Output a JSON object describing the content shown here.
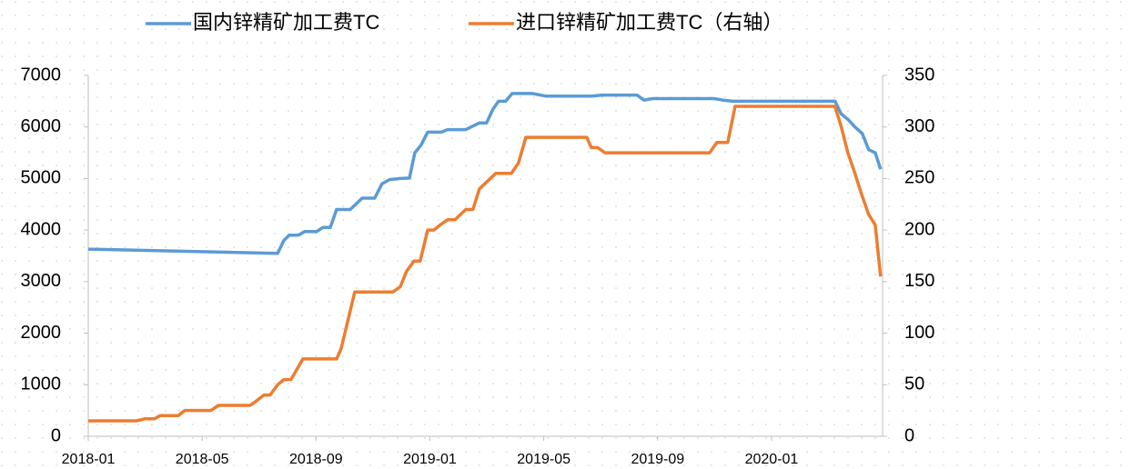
{
  "chart_data": {
    "type": "line",
    "xlim": [
      0,
      27.9
    ],
    "xticks": [
      {
        "value": 0,
        "label": "2018-01"
      },
      {
        "value": 4,
        "label": "2018-05"
      },
      {
        "value": 8,
        "label": "2018-09"
      },
      {
        "value": 12,
        "label": "2019-01"
      },
      {
        "value": 16,
        "label": "2019-05"
      },
      {
        "value": 20,
        "label": "2019-09"
      },
      {
        "value": 24,
        "label": "2020-01"
      }
    ],
    "ylim": [
      0,
      7000
    ],
    "yticks": [
      0,
      1000,
      2000,
      3000,
      4000,
      5000,
      6000,
      7000
    ],
    "y2lim": [
      0,
      350
    ],
    "y2ticks": [
      0,
      50,
      100,
      150,
      200,
      250,
      300,
      350
    ],
    "series": [
      {
        "name": "国内锌精矿加工费TC",
        "color": "#5b9bd5",
        "x": [
          0,
          6.65,
          6.87,
          7.06,
          7.38,
          7.6,
          8.02,
          8.24,
          8.5,
          8.72,
          9.2,
          9.62,
          10.06,
          10.32,
          10.58,
          10.96,
          11.28,
          11.47,
          11.69,
          11.92,
          12.4,
          12.62,
          13.26,
          13.74,
          13.99,
          14.22,
          14.41,
          14.66,
          14.89,
          15.59,
          16.07,
          17.67,
          18.05,
          19.27,
          19.52,
          19.81,
          21.98,
          22.3,
          22.65,
          26.23,
          26.45,
          26.68,
          26.93,
          27.19,
          27.41,
          27.64,
          27.83
        ],
        "values": [
          3630,
          3550,
          3800,
          3900,
          3900,
          3970,
          3970,
          4050,
          4050,
          4400,
          4400,
          4620,
          4620,
          4900,
          4980,
          5000,
          5010,
          5500,
          5650,
          5900,
          5900,
          5950,
          5950,
          6080,
          6080,
          6350,
          6500,
          6500,
          6650,
          6650,
          6600,
          6600,
          6620,
          6620,
          6520,
          6550,
          6550,
          6520,
          6500,
          6500,
          6250,
          6150,
          6000,
          5870,
          5560,
          5500,
          5180
        ]
      },
      {
        "name": "进口锌精矿加工费TC（右轴）",
        "color": "#ed7d31",
        "axis": "y2",
        "x": [
          0,
          1.69,
          2.01,
          2.33,
          2.52,
          3.16,
          3.39,
          4.31,
          4.57,
          5.69,
          5.94,
          6.17,
          6.39,
          6.65,
          6.87,
          7.12,
          7.54,
          8.72,
          8.88,
          9.36,
          10.7,
          10.96,
          11.18,
          11.44,
          11.66,
          11.92,
          12.14,
          12.36,
          12.62,
          12.88,
          13.26,
          13.51,
          13.74,
          14.31,
          14.86,
          15.11,
          15.37,
          17.51,
          17.67,
          17.89,
          18.15,
          21.82,
          22.08,
          22.46,
          22.72,
          26.23,
          26.45,
          26.68,
          26.93,
          27.16,
          27.41,
          27.64,
          27.83
        ],
        "values": [
          15,
          15,
          17,
          17,
          20,
          20,
          25,
          25,
          30,
          30,
          35,
          40,
          40,
          50,
          55,
          55,
          75,
          75,
          85,
          140,
          140,
          145,
          160,
          170,
          170,
          200,
          200,
          205,
          210,
          210,
          220,
          220,
          240,
          255,
          255,
          265,
          290,
          290,
          280,
          280,
          275,
          275,
          285,
          285,
          320,
          320,
          300,
          275,
          255,
          235,
          215,
          205,
          155
        ]
      }
    ],
    "legend": "top"
  }
}
